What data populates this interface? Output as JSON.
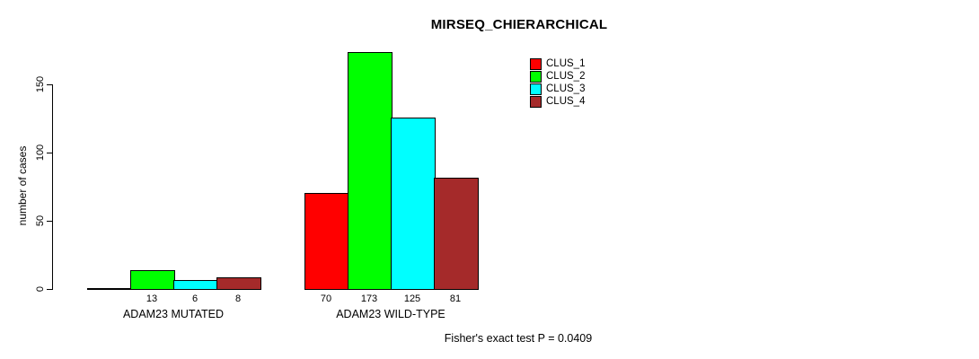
{
  "title": "MIRSEQ_CHIERARCHICAL",
  "footer": {
    "text": "Fisher's exact test P = 0.0409"
  },
  "colors": {
    "background": "#FFFFFF",
    "axis": "#000000",
    "text": "#000000"
  },
  "chart_data": {
    "type": "bar",
    "title": "MIRSEQ_CHIERARCHICAL",
    "xlabel": "",
    "ylabel": "number of cases",
    "yticks": [
      0,
      50,
      100,
      150
    ],
    "ylim": [
      0,
      175
    ],
    "grid": false,
    "legend_position": "top-right",
    "categories": [
      "ADAM23 MUTATED",
      "ADAM23 WILD-TYPE"
    ],
    "series": [
      {
        "name": "CLUS_1",
        "color": "#FF0000",
        "values": [
          0,
          70
        ]
      },
      {
        "name": "CLUS_2",
        "color": "#00FF00",
        "values": [
          13,
          173
        ]
      },
      {
        "name": "CLUS_3",
        "color": "#00FFFF",
        "values": [
          6,
          125
        ]
      },
      {
        "name": "CLUS_4",
        "color": "#A52A2A",
        "values": [
          8,
          81
        ]
      }
    ],
    "value_labels": [
      [
        "",
        "13",
        "6",
        "8"
      ],
      [
        "70",
        "173",
        "125",
        "81"
      ]
    ],
    "annotation": "Fisher's exact test P = 0.0409"
  }
}
